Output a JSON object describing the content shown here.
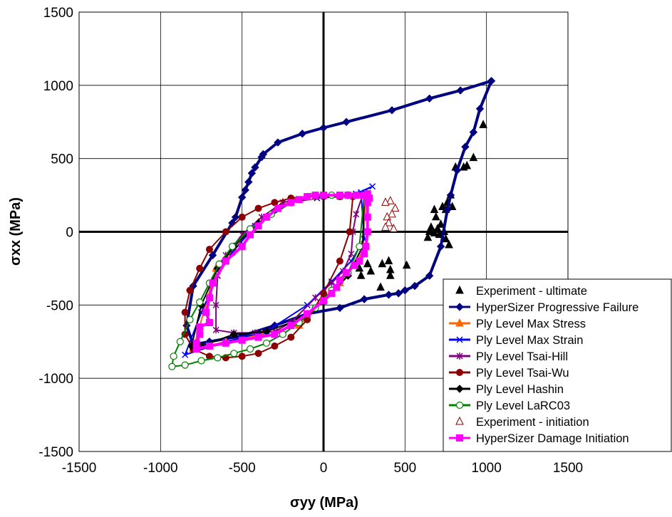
{
  "chart_data": {
    "type": "scatter",
    "title": "",
    "xlabel": "σyy (MPa)",
    "ylabel": "σxx (MPa)",
    "xlim": [
      -1500,
      1500
    ],
    "ylim": [
      -1500,
      1500
    ],
    "xticks": [
      -1500,
      -1000,
      -500,
      0,
      500,
      1000,
      1500
    ],
    "yticks": [
      -1500,
      -1000,
      -500,
      0,
      500,
      1000,
      1500
    ],
    "grid": true,
    "legend_position": "bottom-right",
    "series": [
      {
        "name": "Experiment - ultimate",
        "color": "#000000",
        "marker": "triangle-filled",
        "line": false,
        "points": [
          [
            980,
            730
          ],
          [
            920,
            505
          ],
          [
            880,
            450
          ],
          [
            860,
            440
          ],
          [
            810,
            440
          ],
          [
            780,
            250
          ],
          [
            760,
            200
          ],
          [
            750,
            150
          ],
          [
            730,
            170
          ],
          [
            790,
            170
          ],
          [
            680,
            150
          ],
          [
            690,
            100
          ],
          [
            660,
            30
          ],
          [
            700,
            20
          ],
          [
            720,
            50
          ],
          [
            640,
            -40
          ],
          [
            650,
            0
          ],
          [
            680,
            -10
          ],
          [
            740,
            0
          ],
          [
            750,
            -50
          ],
          [
            770,
            -90
          ],
          [
            710,
            -20
          ],
          [
            360,
            -220
          ],
          [
            400,
            -200
          ],
          [
            410,
            -260
          ],
          [
            410,
            -300
          ],
          [
            510,
            -230
          ],
          [
            270,
            -220
          ],
          [
            290,
            -270
          ],
          [
            230,
            -300
          ],
          [
            220,
            -250
          ],
          [
            350,
            -380
          ]
        ]
      },
      {
        "name": "HyperSizer Progressive Failure",
        "color": "#000080",
        "marker": "diamond-filled",
        "line": true,
        "closed": true,
        "points": [
          [
            1030,
            1030
          ],
          [
            840,
            965
          ],
          [
            650,
            910
          ],
          [
            420,
            830
          ],
          [
            140,
            750
          ],
          [
            0,
            710
          ],
          [
            -130,
            670
          ],
          [
            -280,
            610
          ],
          [
            -370,
            530
          ],
          [
            -380,
            510
          ],
          [
            -420,
            440
          ],
          [
            -440,
            400
          ],
          [
            -460,
            340
          ],
          [
            -480,
            285
          ],
          [
            -500,
            235
          ],
          [
            -540,
            100
          ],
          [
            -560,
            60
          ],
          [
            -680,
            -160
          ],
          [
            -800,
            -370
          ],
          [
            -840,
            -640
          ],
          [
            -800,
            -770
          ],
          [
            -700,
            -750
          ],
          [
            -500,
            -710
          ],
          [
            -300,
            -640
          ],
          [
            -100,
            -560
          ],
          [
            100,
            -520
          ],
          [
            250,
            -460
          ],
          [
            400,
            -430
          ],
          [
            460,
            -420
          ],
          [
            500,
            -400
          ],
          [
            560,
            -370
          ],
          [
            650,
            -300
          ],
          [
            720,
            -100
          ],
          [
            760,
            150
          ],
          [
            780,
            250
          ],
          [
            820,
            420
          ],
          [
            870,
            580
          ],
          [
            920,
            680
          ],
          [
            960,
            840
          ]
        ]
      },
      {
        "name": "Ply Level Max Stress",
        "color": "#FF6600",
        "marker": "triangle-filled",
        "line": true,
        "closed": true,
        "points": [
          [
            260,
            250
          ],
          [
            240,
            -150
          ],
          [
            100,
            -350
          ],
          [
            -150,
            -640
          ],
          [
            -380,
            -700
          ],
          [
            -600,
            -750
          ],
          [
            -800,
            -800
          ],
          [
            -660,
            -250
          ],
          [
            -550,
            -120
          ],
          [
            -400,
            60
          ],
          [
            -250,
            200
          ],
          [
            -50,
            240
          ]
        ]
      },
      {
        "name": "Ply Level Max Strain",
        "color": "#0000FF",
        "marker": "x",
        "line": true,
        "closed": true,
        "points": [
          [
            300,
            310
          ],
          [
            230,
            270
          ],
          [
            250,
            -50
          ],
          [
            170,
            -200
          ],
          [
            50,
            -340
          ],
          [
            -100,
            -500
          ],
          [
            -350,
            -680
          ],
          [
            -600,
            -750
          ],
          [
            -850,
            -840
          ],
          [
            -750,
            -550
          ],
          [
            -650,
            -300
          ],
          [
            -560,
            -140
          ],
          [
            -420,
            40
          ],
          [
            -200,
            200
          ],
          [
            -40,
            230
          ],
          [
            100,
            240
          ],
          [
            200,
            260
          ]
        ]
      },
      {
        "name": "Ply Level Tsai-Hill",
        "color": "#800080",
        "marker": "asterisk",
        "line": true,
        "closed": true,
        "points": [
          [
            240,
            250
          ],
          [
            200,
            120
          ],
          [
            180,
            0
          ],
          [
            170,
            -150
          ],
          [
            120,
            -270
          ],
          [
            50,
            -350
          ],
          [
            -50,
            -450
          ],
          [
            -200,
            -620
          ],
          [
            -300,
            -680
          ],
          [
            -420,
            -690
          ],
          [
            -550,
            -690
          ],
          [
            -660,
            -670
          ],
          [
            -660,
            -500
          ],
          [
            -650,
            -300
          ],
          [
            -600,
            -160
          ],
          [
            -500,
            -20
          ],
          [
            -380,
            100
          ],
          [
            -250,
            200
          ],
          [
            -100,
            240
          ]
        ]
      },
      {
        "name": "Ply Level Tsai-Wu",
        "color": "#8B0000",
        "marker": "circle-filled",
        "line": true,
        "closed": true,
        "points": [
          [
            180,
            240
          ],
          [
            160,
            0
          ],
          [
            100,
            -200
          ],
          [
            0,
            -420
          ],
          [
            -100,
            -600
          ],
          [
            -200,
            -720
          ],
          [
            -300,
            -780
          ],
          [
            -400,
            -830
          ],
          [
            -500,
            -850
          ],
          [
            -600,
            -860
          ],
          [
            -700,
            -850
          ],
          [
            -800,
            -800
          ],
          [
            -850,
            -700
          ],
          [
            -850,
            -550
          ],
          [
            -820,
            -400
          ],
          [
            -760,
            -250
          ],
          [
            -700,
            -120
          ],
          [
            -600,
            0
          ],
          [
            -500,
            100
          ],
          [
            -400,
            160
          ],
          [
            -300,
            200
          ],
          [
            -200,
            230
          ],
          [
            -100,
            240
          ],
          [
            0,
            240
          ],
          [
            100,
            240
          ]
        ]
      },
      {
        "name": "Ply Level Hashin",
        "color": "#000000",
        "marker": "diamond-filled",
        "line": true,
        "closed": true,
        "points": [
          [
            250,
            250
          ],
          [
            240,
            -100
          ],
          [
            150,
            -300
          ],
          [
            0,
            -480
          ],
          [
            -150,
            -600
          ],
          [
            -350,
            -680
          ],
          [
            -550,
            -700
          ],
          [
            -750,
            -780
          ],
          [
            -810,
            -780
          ],
          [
            -750,
            -500
          ],
          [
            -650,
            -250
          ],
          [
            -550,
            -100
          ],
          [
            -400,
            60
          ],
          [
            -200,
            200
          ],
          [
            0,
            240
          ],
          [
            150,
            250
          ]
        ]
      },
      {
        "name": "Ply Level LaRC03",
        "color": "#008000",
        "marker": "circle-open",
        "line": true,
        "closed": true,
        "points": [
          [
            250,
            250
          ],
          [
            220,
            -100
          ],
          [
            150,
            -280
          ],
          [
            50,
            -400
          ],
          [
            -50,
            -520
          ],
          [
            -150,
            -620
          ],
          [
            -250,
            -700
          ],
          [
            -350,
            -760
          ],
          [
            -450,
            -800
          ],
          [
            -550,
            -830
          ],
          [
            -650,
            -860
          ],
          [
            -750,
            -880
          ],
          [
            -850,
            -910
          ],
          [
            -930,
            -920
          ],
          [
            -920,
            -850
          ],
          [
            -880,
            -750
          ],
          [
            -820,
            -600
          ],
          [
            -760,
            -480
          ],
          [
            -700,
            -350
          ],
          [
            -640,
            -220
          ],
          [
            -560,
            -100
          ],
          [
            -450,
            20
          ],
          [
            -320,
            120
          ],
          [
            -200,
            200
          ],
          [
            -80,
            240
          ],
          [
            50,
            250
          ],
          [
            150,
            250
          ]
        ]
      },
      {
        "name": "Experiment - initiation",
        "color": "#8B0000",
        "marker": "triangle-open",
        "line": false,
        "points": [
          [
            440,
            160
          ],
          [
            410,
            210
          ],
          [
            380,
            200
          ],
          [
            420,
            120
          ],
          [
            390,
            100
          ],
          [
            400,
            60
          ],
          [
            380,
            30
          ],
          [
            430,
            20
          ]
        ]
      },
      {
        "name": "HyperSizer Damage Initiation",
        "color": "#FF00FF",
        "marker": "square-filled",
        "line": true,
        "closed": true,
        "points": [
          [
            270,
            260
          ],
          [
            280,
            230
          ],
          [
            270,
            200
          ],
          [
            270,
            100
          ],
          [
            270,
            0
          ],
          [
            260,
            -100
          ],
          [
            250,
            -150
          ],
          [
            220,
            -200
          ],
          [
            190,
            -230
          ],
          [
            140,
            -280
          ],
          [
            100,
            -330
          ],
          [
            80,
            -380
          ],
          [
            50,
            -420
          ],
          [
            0,
            -470
          ],
          [
            -100,
            -560
          ],
          [
            -200,
            -640
          ],
          [
            -300,
            -700
          ],
          [
            -400,
            -720
          ],
          [
            -500,
            -740
          ],
          [
            -600,
            -760
          ],
          [
            -700,
            -780
          ],
          [
            -780,
            -800
          ],
          [
            -780,
            -760
          ],
          [
            -760,
            -700
          ],
          [
            -760,
            -650
          ],
          [
            -700,
            -620
          ],
          [
            -720,
            -550
          ],
          [
            -700,
            -450
          ],
          [
            -680,
            -350
          ],
          [
            -600,
            -200
          ],
          [
            -500,
            -100
          ],
          [
            -450,
            -20
          ],
          [
            -400,
            40
          ],
          [
            -350,
            100
          ],
          [
            -280,
            160
          ],
          [
            -200,
            200
          ],
          [
            -150,
            220
          ],
          [
            -100,
            240
          ],
          [
            -50,
            250
          ],
          [
            0,
            250
          ],
          [
            100,
            250
          ],
          [
            150,
            250
          ],
          [
            200,
            250
          ],
          [
            250,
            250
          ]
        ]
      }
    ]
  }
}
